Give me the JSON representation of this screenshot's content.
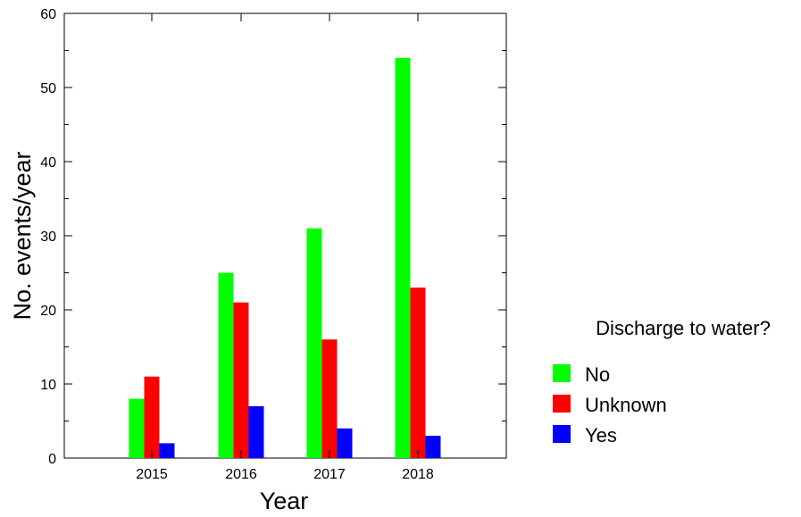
{
  "chart_data": {
    "type": "bar",
    "categories": [
      "2015",
      "2016",
      "2017",
      "2018"
    ],
    "series": [
      {
        "name": "No",
        "values": [
          8,
          25,
          31,
          54
        ],
        "color": "#00ff00"
      },
      {
        "name": "Unknown",
        "values": [
          11,
          21,
          16,
          23
        ],
        "color": "#ff0000"
      },
      {
        "name": "Yes",
        "values": [
          2,
          7,
          4,
          3
        ],
        "color": "#0000ff"
      }
    ],
    "xlabel": "Year",
    "ylabel": "No. events/year",
    "ylim": [
      0,
      60
    ],
    "yticks": [
      0,
      10,
      20,
      30,
      40,
      50,
      60
    ],
    "legend": {
      "title": "Discharge to water?",
      "placement": "right"
    },
    "grid": false
  }
}
